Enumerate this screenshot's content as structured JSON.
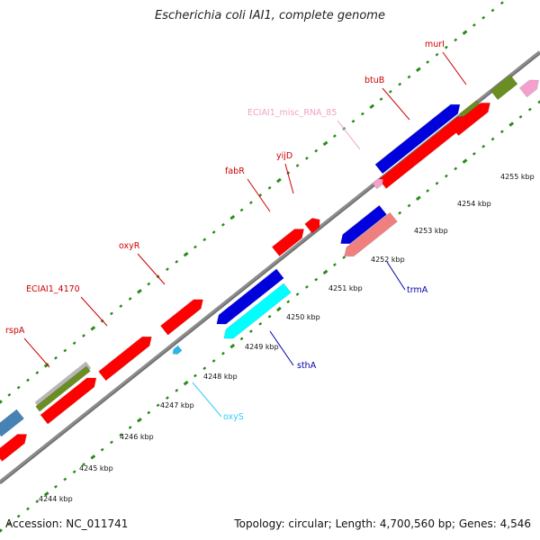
{
  "title": "Escherichia coli IAI1, complete genome",
  "footer": {
    "accession": "Accession: NC_011741",
    "summary": "Topology: circular; Length: 4,700,560 bp; Genes: 4,546"
  },
  "colors": {
    "red": "#ff0000",
    "blue": "#0000dd",
    "cyan": "#00ffff",
    "olive": "#6b8e23",
    "gray": "#b8b8b8",
    "pink": "#f4a0cc",
    "salmon": "#f08080",
    "steel": "#4682b4",
    "dots": "#2a8a1a",
    "backbone": "#8c8c8c"
  },
  "gene_labels": [
    {
      "text": "murI",
      "color": "#cc0000"
    },
    {
      "text": "btuB",
      "color": "#cc0000"
    },
    {
      "text": "ECIAI1_misc_RNA_85",
      "color": "#f0a0c8"
    },
    {
      "text": "yijD",
      "color": "#cc0000"
    },
    {
      "text": "fabR",
      "color": "#cc0000"
    },
    {
      "text": "oxyR",
      "color": "#cc0000"
    },
    {
      "text": "ECIAI1_4170",
      "color": "#cc0000"
    },
    {
      "text": "rspA",
      "color": "#cc0000"
    },
    {
      "text": "trmA",
      "color": "#0000aa"
    },
    {
      "text": "sthA",
      "color": "#0000aa"
    },
    {
      "text": "oxyS",
      "color": "#33ccff"
    }
  ],
  "ticks": [
    "4244 kbp",
    "4245 kbp",
    "4246 kbp",
    "4247 kbp",
    "4248 kbp",
    "4249 kbp",
    "4250 kbp",
    "4251 kbp",
    "4252 kbp",
    "4253 kbp",
    "4254 kbp",
    "4255 kbp"
  ]
}
